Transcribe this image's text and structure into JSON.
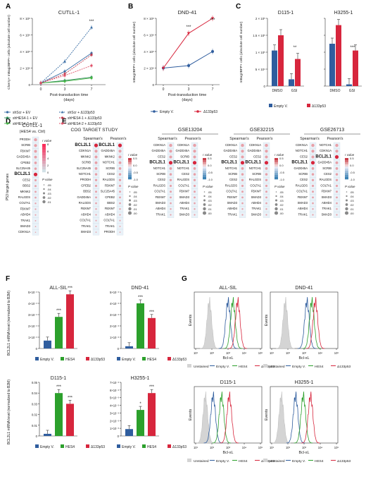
{
  "panels": {
    "A": {
      "letter": "A",
      "title": "CUTLL-1",
      "ylabel": "Cherry+ mBag2BFP+ cells (absolute cell number)",
      "xlabel": "Post-transduction time (days)",
      "yticks": [
        "0",
        "2 × 10⁶",
        "4 × 10⁶",
        "6 × 10⁶",
        "8 × 10⁶"
      ],
      "sig": "***",
      "legend": [
        {
          "label": "shScr + EV",
          "color": "#3a6ea5",
          "dash": false,
          "marker": "circle"
        },
        {
          "label": "shHES4-1 + EV",
          "color": "#2e8b57",
          "dash": false,
          "marker": "circle"
        },
        {
          "label": "shHES4-2 + EV",
          "color": "#44b544",
          "dash": false,
          "marker": "circle"
        },
        {
          "label": "shScr + Δ133p53",
          "color": "#3a6ea5",
          "dash": true,
          "marker": "triangle"
        },
        {
          "label": "shHES4-1 + Δ133p53",
          "color": "#c0394b",
          "dash": true,
          "marker": "circle"
        },
        {
          "label": "shHES4-2 + Δ133p53",
          "color": "#e0536a",
          "dash": true,
          "marker": "circle"
        }
      ]
    },
    "B": {
      "letter": "B",
      "title": "DND-41",
      "ylabel": "mBag2BFP+ cells (absolute cell number)",
      "xlabel": "Post-transduction time (days)",
      "yticks": [
        "0",
        "2 × 10⁶",
        "4 × 10⁶",
        "6 × 10⁶",
        "8 × 10⁶"
      ],
      "sig": "***",
      "legend": [
        {
          "label": "Empty V.",
          "color": "#2f5d9e"
        },
        {
          "label": "Δ133p53",
          "color": "#d7263d"
        }
      ]
    },
    "C": {
      "letter": "C",
      "ylabel": "mBag2BFP+ cells (absolute cell number)",
      "yticks": [
        "0",
        "5 × 10⁴",
        "1 × 10⁵",
        "1.5 × 10⁵",
        "2 × 10⁵"
      ],
      "titles": [
        "D115-1",
        "H3255-1"
      ],
      "groups": [
        "DMSO",
        "GSI"
      ],
      "sig": [
        "**",
        "***"
      ],
      "legend": [
        {
          "label": "Empty V.",
          "color": "#2f5d9e"
        },
        {
          "label": "Δ133p53",
          "color": "#d7263d"
        }
      ]
    },
    "D": {
      "letter": "D",
      "title": "CUTLL-1",
      "subtitle": "(HES4 vs. Ctrl)",
      "ylabel": "P53 target genes",
      "genes": [
        "PRODH",
        "SCRIB",
        "FBXW7",
        "GADD45A",
        "CPEB2",
        "SLC25A45",
        "BCL2L1",
        "CES2",
        "BBS2",
        "MKNK2",
        "RALGDS",
        "COLTA1",
        "FBXW7",
        "ABHD4",
        "TRAK1",
        "SMAD3",
        "CDKN1A"
      ],
      "highlight": "BCL2L1",
      "scale_title": "r value",
      "p_title": "P value",
      "scale_ticks": [
        "8",
        "6",
        "4",
        "2",
        "0"
      ],
      "p_values": [
        ".05",
        ".04",
        ".03",
        ".02",
        ".01"
      ]
    },
    "E": {
      "letter": "E",
      "studies": [
        {
          "title": "COG TARGET STUDY",
          "spearman_genes": [
            "BCL2L1",
            "CDKN1A",
            "MKNK2",
            "SCRIB",
            "SLC25A45",
            "NOTCH1",
            "PRODH",
            "CPEB2",
            "BBS2",
            "GADD45A",
            "RALGDS",
            "FBXW7",
            "ABHD4",
            "COLTA1",
            "TRAK1",
            "SMAD3"
          ],
          "pearson_genes": [
            "BCL2L1",
            "GADD45A",
            "MKNK2",
            "NOTCH1",
            "SCRIB",
            "CES2",
            "RALGDS",
            "FBXW7",
            "SLC25A45",
            "CPEB2",
            "BBS2",
            "FBXW7",
            "ABHD4",
            "COLTA1",
            "TRAK1",
            "PRODH"
          ]
        },
        {
          "title": "GSE13204",
          "spearman_genes": [
            "CDKN1A",
            "GADD45A",
            "CES2",
            "BCL2L1",
            "NOTCH1",
            "SCRIB",
            "CES2",
            "RALGDS",
            "COLTA1",
            "FBXW7",
            "SMAD3",
            "ABHD4",
            "TRAK1"
          ],
          "pearson_genes": [
            "CDKN1A",
            "GADD45A",
            "SCRIB",
            "BCL2L1",
            "NOTCH1",
            "CES2",
            "RALGDS",
            "COLTA1",
            "FBXW7",
            "SMAD3",
            "ABHD4",
            "TRAK1",
            "SMAD3"
          ]
        },
        {
          "title": "GSE32215",
          "spearman_genes": [
            "CDKN1A",
            "GADD45A",
            "CES2",
            "BCL2L1",
            "NOTCH1",
            "SCRIB",
            "CES2",
            "RALGDS",
            "COLTA1",
            "FBXW7",
            "SMAD3",
            "ABHD4",
            "TRAK1"
          ],
          "pearson_genes": [
            "CDKN1A",
            "GADD45A",
            "CES2",
            "BCL2L1",
            "NOTCH1",
            "SCRIB",
            "RALGDS",
            "COLTA1",
            "FBXW7",
            "SMAD3",
            "ABHD4",
            "TRAK1",
            "SMAD3"
          ]
        },
        {
          "title": "GSE26713",
          "spearman_genes": [
            "CDKN1A",
            "NOTCH1",
            "CES2",
            "BCL2L1",
            "GADD45A",
            "SCRIB",
            "CES2",
            "RALGDS",
            "COLTA1",
            "FBXW7",
            "SMAD3",
            "ABHD4",
            "TRAK1"
          ],
          "pearson_genes": [
            "NOTCH1",
            "CDKN1A",
            "BCL2L1",
            "GADD45A",
            "SCRIB",
            "CES2",
            "RALGDS",
            "COLTA1",
            "FBXW7",
            "SMAD3",
            "ABHD4",
            "TRAK1",
            "SMAD3"
          ]
        }
      ],
      "headers": [
        "Spearman's",
        "Pearson's"
      ],
      "highlight": "BCL2L1",
      "scale_title": "r value",
      "p_title": "P value",
      "scale_ticks": [
        "0.5",
        "0.0",
        "-0.5",
        "-1.0"
      ],
      "p_values": [
        ".05",
        ".04",
        ".03",
        ".02",
        ".01",
        ".00"
      ]
    },
    "F": {
      "letter": "F",
      "ylabel": "BCL2L1 mRNA level (normalized to B2M)",
      "legend": [
        {
          "label": "Empty V.",
          "color": "#2f5d9e"
        },
        {
          "label": "HES4",
          "color": "#2ca02c"
        },
        {
          "label": "Δ133p53",
          "color": "#d7263d"
        }
      ]
    },
    "G": {
      "letter": "G",
      "ylabel": "Events",
      "xlabel": "Bcl-xL",
      "xticks": [
        "10¹",
        "10²",
        "10³",
        "10⁴",
        "10⁵"
      ],
      "legend": [
        {
          "label": "Unstained",
          "color": "#aaaaaa"
        },
        {
          "label": "Empty V.",
          "color": "#2f5d9e"
        },
        {
          "label": "HES4",
          "color": "#2ca02c"
        },
        {
          "label": "Δ133p53",
          "color": "#d7263d"
        }
      ],
      "titles": [
        "ALL-SIL",
        "DND-41",
        "D115-1",
        "H3255-1"
      ]
    }
  },
  "chart_data": [
    {
      "type": "line",
      "panel": "A",
      "title": "CUTLL-1",
      "x": [
        0,
        3,
        7
      ],
      "xlabel": "Post-transduction time (days)",
      "ylabel": "Cherry+ mBag2BFP+ cells (absolute cell number)",
      "ylim": [
        0,
        8000000
      ],
      "series": [
        {
          "name": "shScr + EV",
          "values": [
            200000,
            1600000,
            3800000
          ]
        },
        {
          "name": "shHES4-1 + EV",
          "values": [
            200000,
            500000,
            900000
          ]
        },
        {
          "name": "shHES4-2 + EV",
          "values": [
            200000,
            400000,
            800000
          ]
        },
        {
          "name": "shScr + Δ133p53",
          "values": [
            200000,
            2800000,
            6900000
          ]
        },
        {
          "name": "shHES4-1 + Δ133p53",
          "values": [
            200000,
            1300000,
            3600000
          ]
        },
        {
          "name": "shHES4-2 + Δ133p53",
          "values": [
            200000,
            1100000,
            2300000
          ]
        }
      ]
    },
    {
      "type": "line",
      "panel": "B",
      "title": "DND-41",
      "x": [
        0,
        3,
        7
      ],
      "xlabel": "Post-transduction time (days)",
      "ylabel": "mBag2BFP+ cells (absolute cell number)",
      "ylim": [
        0,
        8000000
      ],
      "series": [
        {
          "name": "Empty V.",
          "values": [
            2000000,
            2300000,
            4000000
          ]
        },
        {
          "name": "Δ133p53",
          "values": [
            2000000,
            6200000,
            8000000
          ]
        }
      ]
    },
    {
      "type": "bar",
      "panel": "C",
      "title": "D115-1",
      "categories": [
        "DMSO",
        "GSI"
      ],
      "ylim": [
        0,
        200000
      ],
      "series": [
        {
          "name": "Empty V.",
          "values": [
            105000,
            20000
          ]
        },
        {
          "name": "Δ133p53",
          "values": [
            150000,
            80000
          ]
        }
      ]
    },
    {
      "type": "bar",
      "panel": "C",
      "title": "H3255-1",
      "categories": [
        "DMSO",
        "GSI"
      ],
      "ylim": [
        0,
        200000
      ],
      "series": [
        {
          "name": "Empty V.",
          "values": [
            125000,
            5000
          ]
        },
        {
          "name": "Δ133p53",
          "values": [
            180000,
            105000
          ]
        }
      ]
    },
    {
      "type": "bar",
      "panel": "F",
      "title": "ALL-SIL",
      "categories": [
        "Empty V.",
        "HES4",
        "Δ133p53"
      ],
      "series": [
        {
          "name": "BCL2L1",
          "values": [
            0.0007,
            0.0028,
            0.0048
          ]
        }
      ],
      "ylim": [
        0,
        0.005
      ],
      "yticks": [
        "0",
        "1×10⁻³",
        "2×10⁻³",
        "3×10⁻³",
        "4×10⁻³",
        "5×10⁻³"
      ],
      "sig": [
        "",
        "***",
        "***"
      ]
    },
    {
      "type": "bar",
      "panel": "F",
      "title": "DND-41",
      "categories": [
        "Empty V.",
        "HES4",
        "Δ133p53"
      ],
      "series": [
        {
          "name": "BCL2L1",
          "values": [
            0.0002,
            0.004,
            0.0027
          ]
        }
      ],
      "ylim": [
        0,
        0.005
      ],
      "yticks": [
        "0",
        "1×10⁻³",
        "2×10⁻³",
        "3×10⁻³",
        "4×10⁻³",
        "5×10⁻³"
      ],
      "sig": [
        "",
        "***",
        "***"
      ]
    },
    {
      "type": "bar",
      "panel": "F",
      "title": "D115-1",
      "categories": [
        "Empty V.",
        "HES4",
        "Δ133p53"
      ],
      "series": [
        {
          "name": "BCL2L1",
          "values": [
            0.002,
            0.04,
            0.03
          ]
        }
      ],
      "ylim": [
        0,
        0.05
      ],
      "yticks": [
        "0",
        "0.01",
        "0.02",
        "0.03",
        "0.04",
        "0.05"
      ],
      "sig": [
        "",
        "***",
        "***"
      ]
    },
    {
      "type": "bar",
      "panel": "F",
      "title": "H3255-1",
      "categories": [
        "Empty V.",
        "HES4",
        "Δ133p53"
      ],
      "series": [
        {
          "name": "BCL2L1",
          "values": [
            0.0009,
            0.0034,
            0.0056
          ]
        }
      ],
      "ylim": [
        0,
        0.007
      ],
      "yticks": [
        "0",
        "1×10⁻³",
        "2×10⁻³",
        "3×10⁻³",
        "4×10⁻³",
        "5×10⁻³",
        "6×10⁻³",
        "7×10⁻³"
      ],
      "sig": [
        "",
        "*",
        "***"
      ]
    },
    {
      "type": "area",
      "panel": "G",
      "title": "ALL-SIL",
      "xscale": "log",
      "series": [
        {
          "name": "Unstained",
          "peak_x": 70
        },
        {
          "name": "Empty V.",
          "peak_x": 1000
        },
        {
          "name": "HES4",
          "peak_x": 2000
        },
        {
          "name": "Δ133p53",
          "peak_x": 4000
        }
      ]
    },
    {
      "type": "area",
      "panel": "G",
      "title": "DND-41",
      "xscale": "log",
      "series": [
        {
          "name": "Unstained",
          "peak_x": 70
        },
        {
          "name": "Empty V.",
          "peak_x": 1500
        },
        {
          "name": "HES4",
          "peak_x": 3000
        },
        {
          "name": "Δ133p53",
          "peak_x": 5000
        }
      ]
    },
    {
      "type": "area",
      "panel": "G",
      "title": "D115-1",
      "xscale": "log",
      "series": [
        {
          "name": "Unstained",
          "peak_x": 40
        },
        {
          "name": "Empty V.",
          "peak_x": 120
        },
        {
          "name": "HES4",
          "peak_x": 400
        },
        {
          "name": "Δ133p53",
          "peak_x": 1200
        }
      ]
    },
    {
      "type": "area",
      "panel": "G",
      "title": "H3255-1",
      "xscale": "log",
      "series": [
        {
          "name": "Unstained",
          "peak_x": 40
        },
        {
          "name": "Empty V.",
          "peak_x": 300
        },
        {
          "name": "HES4",
          "peak_x": 900
        },
        {
          "name": "Δ133p53",
          "peak_x": 2500
        }
      ]
    }
  ]
}
